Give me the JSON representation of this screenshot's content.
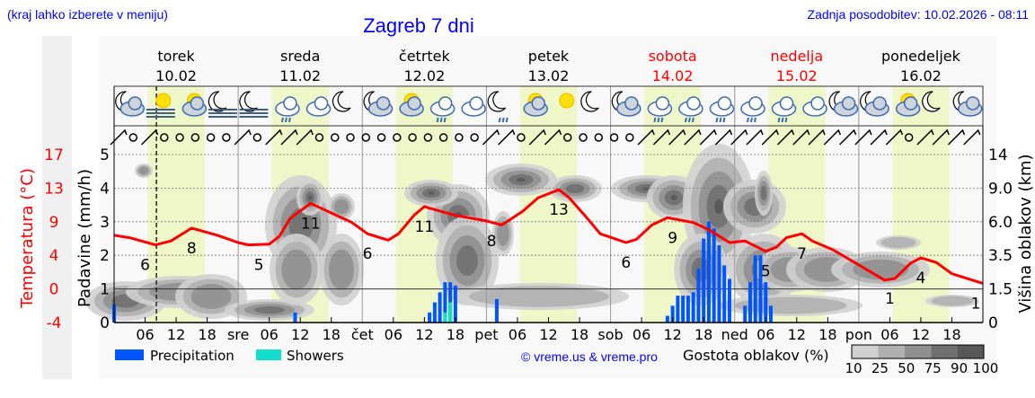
{
  "header": {
    "hint": "(kraj lahko izberete v meniju)",
    "title": "Zagreb 7 dni",
    "updated": "Zadnja posodobitev: 10.02.2026 - 08:11"
  },
  "days": [
    {
      "name": "torek",
      "date": "10.02",
      "abbr": "",
      "weekend": false
    },
    {
      "name": "sreda",
      "date": "11.02",
      "abbr": "sre",
      "weekend": false
    },
    {
      "name": "četrtek",
      "date": "12.02",
      "abbr": "čet",
      "weekend": false
    },
    {
      "name": "petek",
      "date": "13.02",
      "abbr": "pet",
      "weekend": false
    },
    {
      "name": "sobota",
      "date": "14.02",
      "abbr": "sob",
      "weekend": true
    },
    {
      "name": "nedelja",
      "date": "15.02",
      "abbr": "ned",
      "weekend": true
    },
    {
      "name": "ponedeljek",
      "date": "16.02",
      "abbr": "pon",
      "weekend": false
    }
  ],
  "colors": {
    "precip": "#0055ff",
    "showers": "#11ddcc",
    "temp": "#ff0000",
    "weekend": "#ff0000",
    "daylight": "#eff7c8",
    "link": "#0000ff"
  },
  "weather_icons": [
    "moon-cloud",
    "sun-fog",
    "sun-cloud",
    "moon-fog",
    "moon-fog",
    "cloud-rain",
    "cloud",
    "moon",
    "moon-cloud",
    "sun-cloud",
    "cloud-rain",
    "cloud",
    "moon-rain",
    "sun-cloud",
    "sun",
    "moon",
    "moon-cloud",
    "cloud-rain",
    "cloud-rain",
    "cloud-rain",
    "cloud-rain",
    "cloud-rain",
    "cloud",
    "moon-cloud",
    "moon-cloud",
    "sun-cloud",
    "moon",
    "moon-cloud"
  ],
  "wind": [
    "barb",
    "calm",
    "barb",
    "calm",
    "calm",
    "calm",
    "calm",
    "calm",
    "barb",
    "calm",
    "barb",
    "barb",
    "barb",
    "calm",
    "calm",
    "calm",
    "calm",
    "calm",
    "calm",
    "calm",
    "calm",
    "calm",
    "calm",
    "calm",
    "barb",
    "barb",
    "calm",
    "barb",
    "barb",
    "calm",
    "calm",
    "calm",
    "calm",
    "calm",
    "barb",
    "barb",
    "barb",
    "barb",
    "barb",
    "barb",
    "barb",
    "barb",
    "barb",
    "barb",
    "barb",
    "barb",
    "barb",
    "barb",
    "barb",
    "barb",
    "barb",
    "calm",
    "barb",
    "barb",
    "barb",
    "barb"
  ],
  "legend": {
    "precip": "Precipitation",
    "showers": "Showers",
    "copyright": "© vreme.us & vreme.pro",
    "density_title": "Gostota oblakov (%)",
    "density_levels": [
      "10",
      "25",
      "50",
      "75",
      "90",
      "100"
    ],
    "density_colors": [
      "#d0d0d0",
      "#b0b0b0",
      "#909090",
      "#707070",
      "#585858"
    ]
  },
  "chart_data": {
    "type": "meteogram",
    "now": "10.02 08:11",
    "left_axis": {
      "label": "Temperatura (°C)",
      "ticks": [
        "-4",
        "0",
        "4",
        "9",
        "13",
        "17"
      ],
      "range": [
        -4,
        17
      ]
    },
    "precip_axis": {
      "label": "Padavine (mm/h)",
      "ticks": [
        "0",
        "1",
        "2",
        "3",
        "4",
        "5"
      ],
      "range": [
        0,
        5
      ]
    },
    "right_axis": {
      "label": "Višina oblakov (km)",
      "ticks": [
        "0",
        "1.5",
        "3.5",
        "6.0",
        "9.0",
        "14"
      ]
    },
    "x_ticks": [
      "06",
      "12",
      "18"
    ],
    "temperature": [
      [
        "10.02 00",
        6.9
      ],
      [
        "10.02 03",
        6.6
      ],
      [
        "10.02 08",
        5.7
      ],
      [
        "10.02 11",
        6.2
      ],
      [
        "10.02 15",
        7.8
      ],
      [
        "10.02 20",
        6.9
      ],
      [
        "11.02 00",
        6.0
      ],
      [
        "11.02 02",
        5.7
      ],
      [
        "11.02 06",
        5.8
      ],
      [
        "11.02 08",
        6.8
      ],
      [
        "11.02 10",
        9.0
      ],
      [
        "11.02 14",
        10.9
      ],
      [
        "11.02 16",
        10.3
      ],
      [
        "11.02 22",
        8.5
      ],
      [
        "12.02 01",
        7.1
      ],
      [
        "12.02 05",
        6.3
      ],
      [
        "12.02 07",
        7.1
      ],
      [
        "12.02 10",
        9.4
      ],
      [
        "12.02 12",
        10.5
      ],
      [
        "12.02 13",
        10.3
      ],
      [
        "12.02 18",
        9.4
      ],
      [
        "13.02 00",
        8.7
      ],
      [
        "13.02 03",
        8.2
      ],
      [
        "13.02 07",
        9.9
      ],
      [
        "13.02 10",
        11.6
      ],
      [
        "13.02 14",
        12.6
      ],
      [
        "13.02 16",
        11.6
      ],
      [
        "13.02 19",
        9.4
      ],
      [
        "13.02 22",
        7.1
      ],
      [
        "14.02 03",
        6.0
      ],
      [
        "14.02 05",
        6.4
      ],
      [
        "14.02 08",
        8.2
      ],
      [
        "14.02 11",
        9.1
      ],
      [
        "14.02 16",
        8.5
      ],
      [
        "14.02 19",
        7.6
      ],
      [
        "14.02 23",
        6.0
      ],
      [
        "15.02 02",
        6.2
      ],
      [
        "15.02 06",
        4.9
      ],
      [
        "15.02 08",
        5.4
      ],
      [
        "15.02 10",
        6.6
      ],
      [
        "15.02 13",
        7.1
      ],
      [
        "15.02 15",
        6.2
      ],
      [
        "15.02 19",
        5.1
      ],
      [
        "16.02 00",
        3.2
      ],
      [
        "16.02 05",
        1.3
      ],
      [
        "16.02 07",
        1.5
      ],
      [
        "16.02 10",
        3.4
      ],
      [
        "16.02 12",
        4.1
      ],
      [
        "16.02 15",
        3.5
      ],
      [
        "16.02 18",
        2.1
      ],
      [
        "16.02 24",
        0.9
      ]
    ],
    "temp_labels": [
      {
        "t": "10.02 06",
        "v": "6",
        "pos": "below"
      },
      {
        "t": "10.02 15",
        "v": "8",
        "pos": "below"
      },
      {
        "t": "11.02 04",
        "v": "5",
        "pos": "below"
      },
      {
        "t": "11.02 14",
        "v": "11",
        "pos": "below"
      },
      {
        "t": "12.02 01",
        "v": "6",
        "pos": "below"
      },
      {
        "t": "12.02 12",
        "v": "11",
        "pos": "below"
      },
      {
        "t": "13.02 01",
        "v": "8",
        "pos": "below"
      },
      {
        "t": "13.02 14",
        "v": "13",
        "pos": "below"
      },
      {
        "t": "14.02 03",
        "v": "6",
        "pos": "below"
      },
      {
        "t": "14.02 12",
        "v": "9",
        "pos": "below"
      },
      {
        "t": "15.02 06",
        "v": "5",
        "pos": "below"
      },
      {
        "t": "15.02 13",
        "v": "7",
        "pos": "below"
      },
      {
        "t": "16.02 06",
        "v": "1",
        "pos": "below"
      },
      {
        "t": "16.02 12",
        "v": "4",
        "pos": "below"
      },
      {
        "t": "16.02 24",
        "v": "1",
        "pos": "below"
      }
    ],
    "precipitation": [
      [
        "10.02 00",
        0.55
      ],
      [
        "11.02 11",
        0.3
      ],
      [
        "12.02 13",
        0.3
      ],
      [
        "12.02 14",
        0.6
      ],
      [
        "12.02 15",
        0.9
      ],
      [
        "12.02 16",
        1.2
      ],
      [
        "12.02 17",
        1.2
      ],
      [
        "12.02 18",
        1.1
      ],
      [
        "13.02 02",
        0.7
      ],
      [
        "14.02 11",
        0.2
      ],
      [
        "14.02 12",
        0.5
      ],
      [
        "14.02 13",
        0.8
      ],
      [
        "14.02 14",
        0.8
      ],
      [
        "14.02 15",
        0.8
      ],
      [
        "14.02 16",
        0.9
      ],
      [
        "14.02 17",
        1.6
      ],
      [
        "14.02 18",
        2.5
      ],
      [
        "14.02 19",
        3.0
      ],
      [
        "14.02 20",
        2.8
      ],
      [
        "14.02 21",
        2.3
      ],
      [
        "14.02 22",
        1.7
      ],
      [
        "14.02 23",
        1.3
      ],
      [
        "15.02 02",
        0.5
      ],
      [
        "15.02 03",
        1.2
      ],
      [
        "15.02 04",
        2.0
      ],
      [
        "15.02 05",
        2.0
      ],
      [
        "15.02 06",
        1.2
      ],
      [
        "15.02 07",
        0.5
      ]
    ],
    "showers": [
      [
        "12.02 16",
        0.3
      ],
      [
        "12.02 17",
        0.6
      ]
    ]
  }
}
